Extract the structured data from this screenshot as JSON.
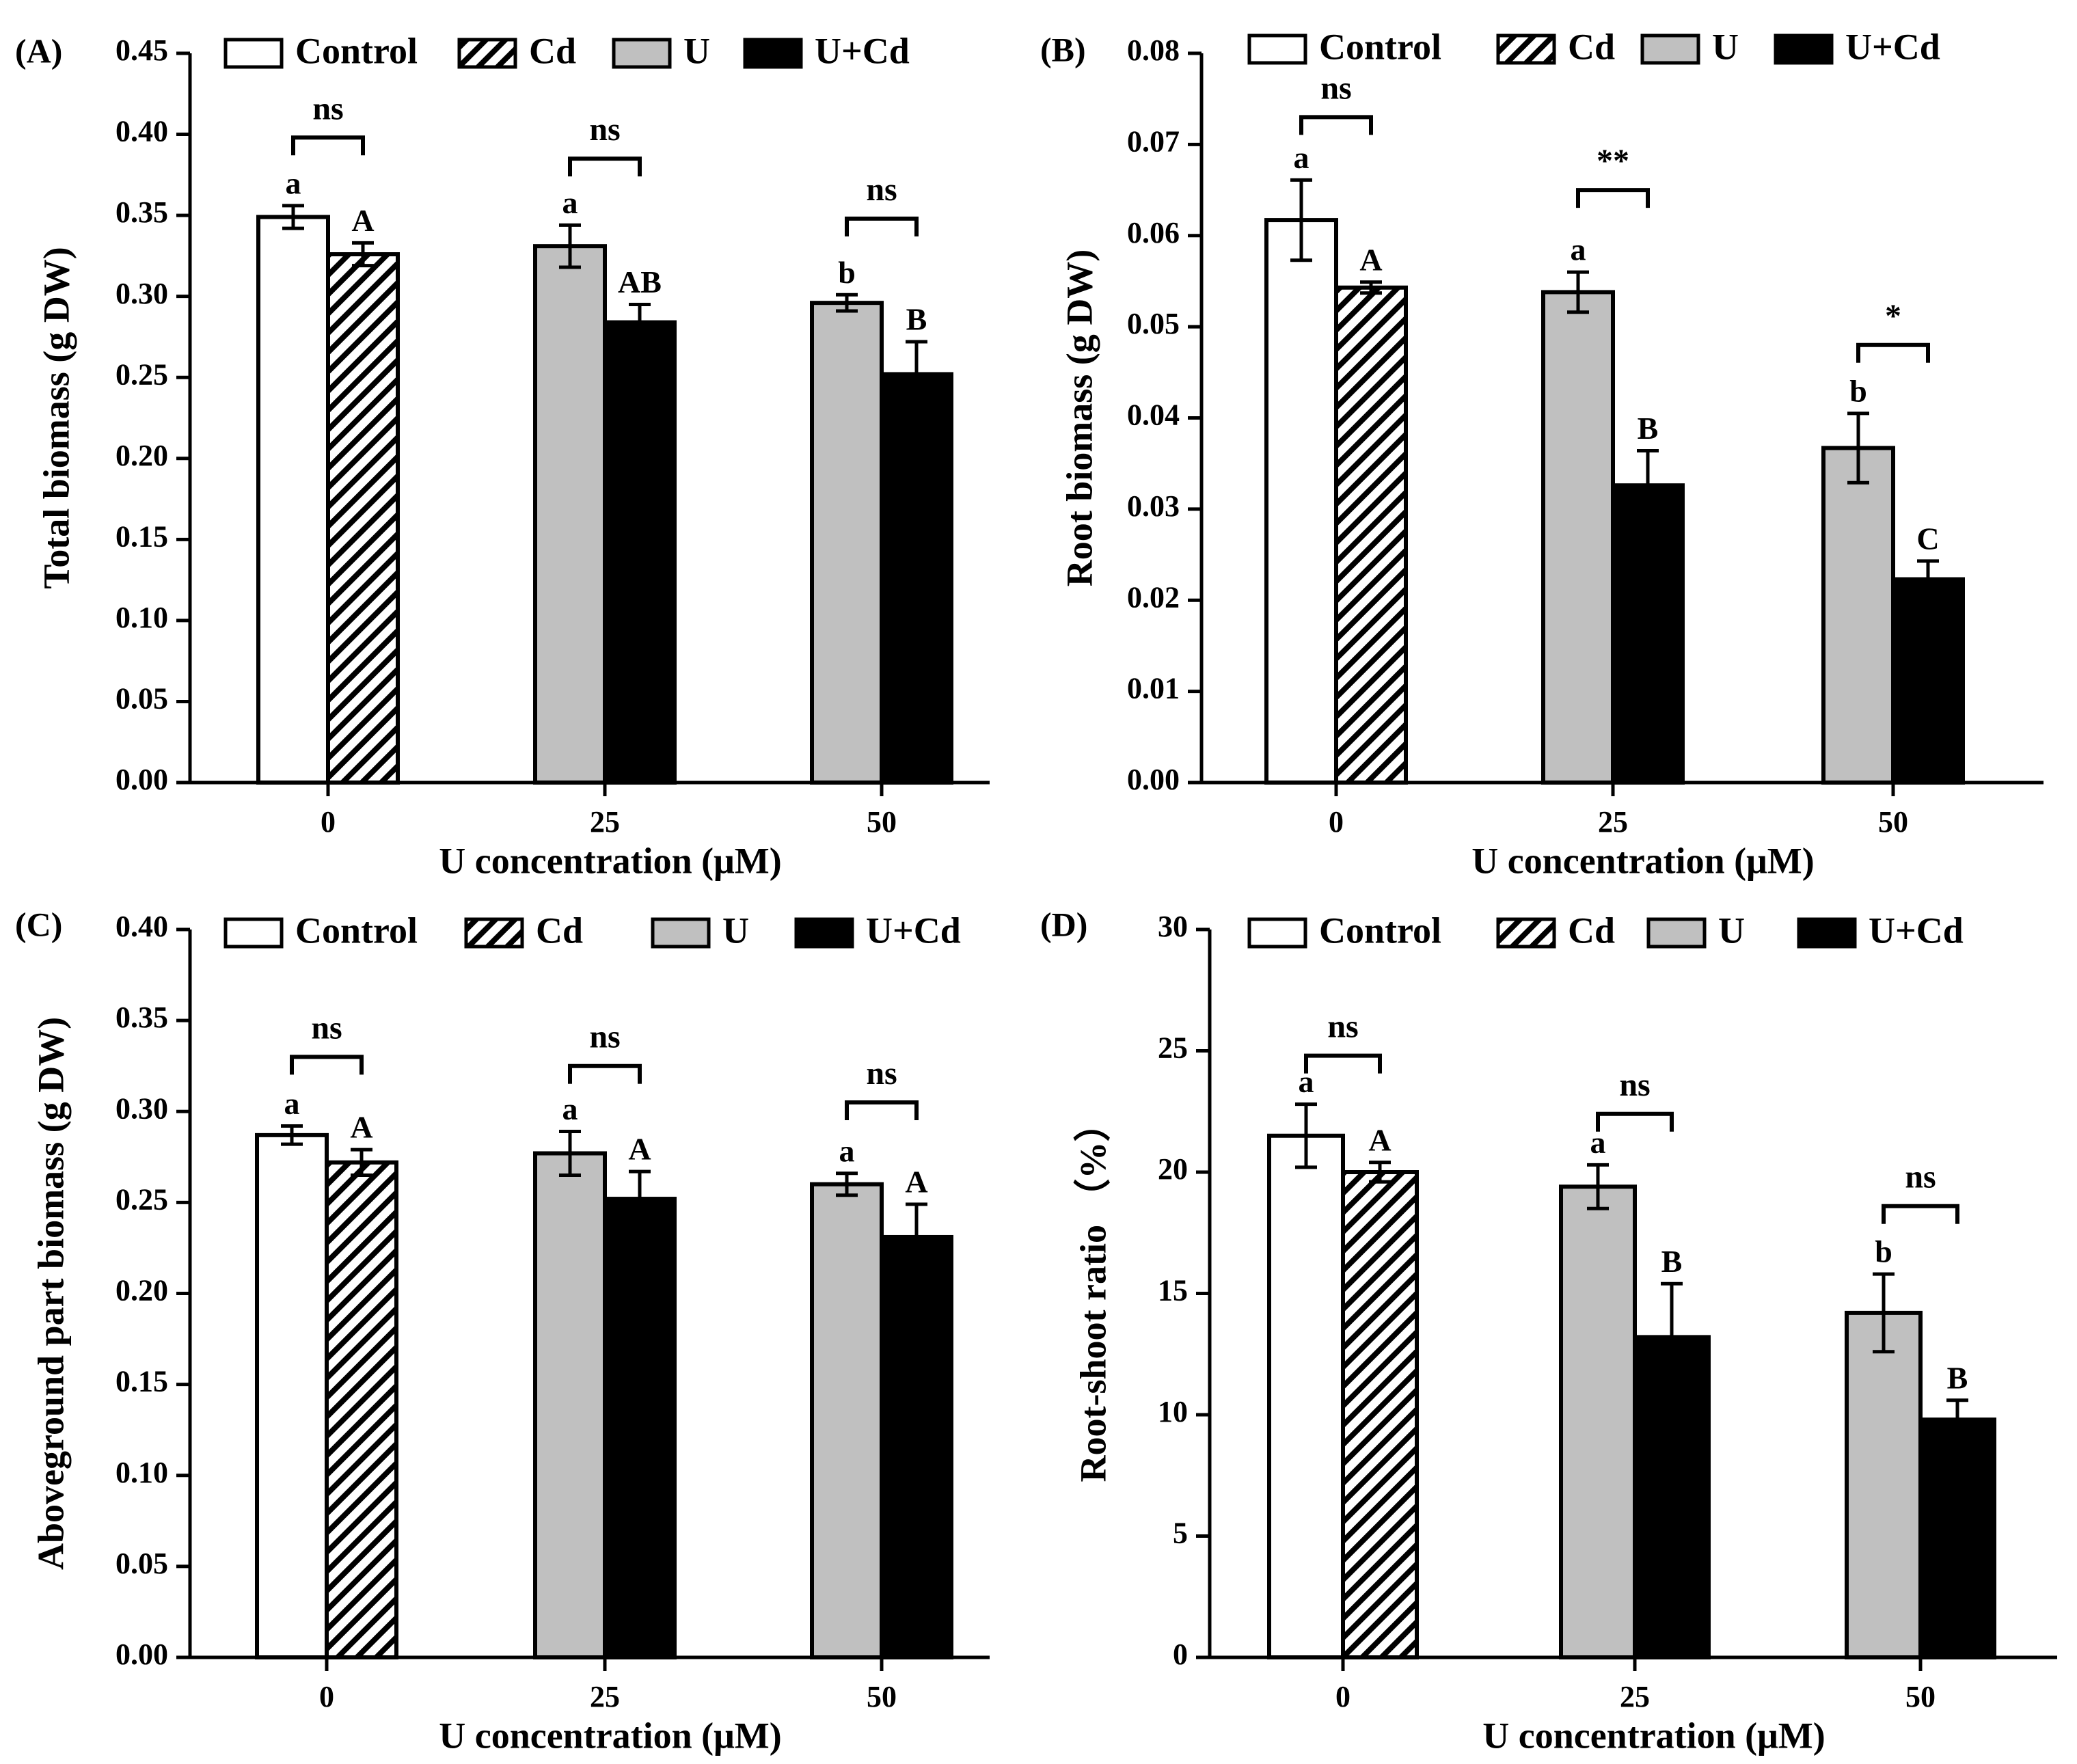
{
  "colors": {
    "control": "#ffffff",
    "cd": "#ffffff",
    "u": "#c0c0c0",
    "ucd": "#000000",
    "stroke": "#000000"
  },
  "legend_labels": [
    "Control",
    "Cd",
    "U",
    "U+Cd"
  ],
  "chart_data": [
    {
      "type": "bar",
      "panel_label": "(A)",
      "xlabel": "U concentration (μM)",
      "ylabel": "Total biomass (g DW)",
      "ylim": [
        0,
        0.45
      ],
      "yticks": [
        "0.00",
        "0.05",
        "0.10",
        "0.15",
        "0.20",
        "0.25",
        "0.30",
        "0.35",
        "0.40",
        "0.45"
      ],
      "categories": [
        "0",
        "25",
        "50"
      ],
      "bars": [
        {
          "group": 0,
          "series": "Control",
          "value": 0.349,
          "err": 0.007,
          "letter": "a"
        },
        {
          "group": 0,
          "series": "Cd",
          "value": 0.326,
          "err": 0.007,
          "letter": "A"
        },
        {
          "group": 1,
          "series": "U",
          "value": 0.331,
          "err": 0.013,
          "letter": "a"
        },
        {
          "group": 1,
          "series": "U+Cd",
          "value": 0.284,
          "err": 0.011,
          "letter": "AB"
        },
        {
          "group": 2,
          "series": "U",
          "value": 0.296,
          "err": 0.005,
          "letter": "b"
        },
        {
          "group": 2,
          "series": "U+Cd",
          "value": 0.252,
          "err": 0.02,
          "letter": "B"
        }
      ],
      "significance": [
        {
          "group": 0,
          "label": "ns",
          "level": 0.398
        },
        {
          "group": 1,
          "label": "ns",
          "level": 0.385
        },
        {
          "group": 2,
          "label": "ns",
          "level": 0.348
        }
      ]
    },
    {
      "type": "bar",
      "panel_label": "(B)",
      "xlabel": "U concentration (μM)",
      "ylabel": "Root biomass (g DW)",
      "ylim": [
        0,
        0.08
      ],
      "yticks": [
        "0.00",
        "0.01",
        "0.02",
        "0.03",
        "0.04",
        "0.05",
        "0.06",
        "0.07",
        "0.08"
      ],
      "categories": [
        "0",
        "25",
        "50"
      ],
      "bars": [
        {
          "group": 0,
          "series": "Control",
          "value": 0.0617,
          "err": 0.0044,
          "letter": "a"
        },
        {
          "group": 0,
          "series": "Cd",
          "value": 0.0543,
          "err": 0.0006,
          "letter": "A"
        },
        {
          "group": 1,
          "series": "U",
          "value": 0.0538,
          "err": 0.0022,
          "letter": "a"
        },
        {
          "group": 1,
          "series": "U+Cd",
          "value": 0.0326,
          "err": 0.0038,
          "letter": "B"
        },
        {
          "group": 2,
          "series": "U",
          "value": 0.0367,
          "err": 0.0038,
          "letter": "b"
        },
        {
          "group": 2,
          "series": "U+Cd",
          "value": 0.0223,
          "err": 0.002,
          "letter": "C"
        }
      ],
      "significance": [
        {
          "group": 0,
          "label": "ns",
          "level": 0.073
        },
        {
          "group": 1,
          "label": "**",
          "level": 0.065
        },
        {
          "group": 2,
          "label": "*",
          "level": 0.048
        }
      ]
    },
    {
      "type": "bar",
      "panel_label": "(C)",
      "xlabel": "U concentration (μM)",
      "ylabel": "Aboveground part biomass (g DW)",
      "ylim": [
        0,
        0.4
      ],
      "yticks": [
        "0.00",
        "0.05",
        "0.10",
        "0.15",
        "0.20",
        "0.25",
        "0.30",
        "0.35",
        "0.40"
      ],
      "categories": [
        "0",
        "25",
        "50"
      ],
      "bars": [
        {
          "group": 0,
          "series": "Control",
          "value": 0.287,
          "err": 0.005,
          "letter": "a"
        },
        {
          "group": 0,
          "series": "Cd",
          "value": 0.272,
          "err": 0.007,
          "letter": "A"
        },
        {
          "group": 1,
          "series": "U",
          "value": 0.277,
          "err": 0.012,
          "letter": "a"
        },
        {
          "group": 1,
          "series": "U+Cd",
          "value": 0.252,
          "err": 0.015,
          "letter": "A"
        },
        {
          "group": 2,
          "series": "U",
          "value": 0.26,
          "err": 0.006,
          "letter": "a"
        },
        {
          "group": 2,
          "series": "U+Cd",
          "value": 0.231,
          "err": 0.018,
          "letter": "A"
        }
      ],
      "significance": [
        {
          "group": 0,
          "label": "ns",
          "level": 0.33
        },
        {
          "group": 1,
          "label": "ns",
          "level": 0.325
        },
        {
          "group": 2,
          "label": "ns",
          "level": 0.305
        }
      ]
    },
    {
      "type": "bar",
      "panel_label": "(D)",
      "xlabel": "U concentration (μM)",
      "ylabel": "Root-shoot ratio （%）",
      "ylim": [
        0,
        30
      ],
      "yticks": [
        "0",
        "5",
        "10",
        "15",
        "20",
        "25",
        "30"
      ],
      "categories": [
        "0",
        "25",
        "50"
      ],
      "bars": [
        {
          "group": 0,
          "series": "Control",
          "value": 21.5,
          "err": 1.3,
          "letter": "a"
        },
        {
          "group": 0,
          "series": "Cd",
          "value": 20.0,
          "err": 0.4,
          "letter": "A"
        },
        {
          "group": 1,
          "series": "U",
          "value": 19.4,
          "err": 0.9,
          "letter": "a"
        },
        {
          "group": 1,
          "series": "U+Cd",
          "value": 13.2,
          "err": 2.2,
          "letter": "B"
        },
        {
          "group": 2,
          "series": "U",
          "value": 14.2,
          "err": 1.6,
          "letter": "b"
        },
        {
          "group": 2,
          "series": "U+Cd",
          "value": 9.8,
          "err": 0.8,
          "letter": "B"
        }
      ],
      "significance": [
        {
          "group": 0,
          "label": "ns",
          "level": 24.8
        },
        {
          "group": 1,
          "label": "ns",
          "level": 22.4
        },
        {
          "group": 2,
          "label": "ns",
          "level": 18.6
        }
      ]
    }
  ]
}
